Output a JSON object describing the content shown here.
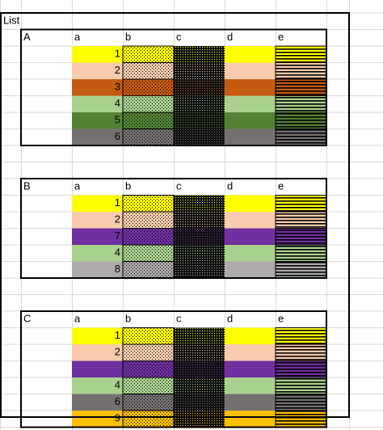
{
  "sheet": {
    "title": "List",
    "columns": [
      "a",
      "b",
      "c",
      "d",
      "e"
    ],
    "blocks": [
      {
        "label": "A",
        "rows": [
          {
            "number": 1,
            "color": "#ffff00"
          },
          {
            "number": 2,
            "color": "#f8cbad"
          },
          {
            "number": 3,
            "color": "#c55a11"
          },
          {
            "number": 4,
            "color": "#a9d18e"
          },
          {
            "number": 5,
            "color": "#548235"
          },
          {
            "number": 6,
            "color": "#767171"
          }
        ]
      },
      {
        "label": "B",
        "rows": [
          {
            "number": 1,
            "color": "#ffff00"
          },
          {
            "number": 2,
            "color": "#f8cbad"
          },
          {
            "number": 7,
            "color": "#7030a0"
          },
          {
            "number": 4,
            "color": "#a9d18e"
          },
          {
            "number": 8,
            "color": "#aeaaaa"
          }
        ]
      },
      {
        "label": "C",
        "rows": [
          {
            "number": 1,
            "color": "#ffff00"
          },
          {
            "number": 2,
            "color": "#f8cbad"
          },
          {
            "number": null,
            "color": "#7030a0"
          },
          {
            "number": 4,
            "color": "#a9d18e"
          },
          {
            "number": 6,
            "color": "#757171"
          },
          {
            "number": 9,
            "color": "#ffc000"
          }
        ]
      }
    ]
  }
}
